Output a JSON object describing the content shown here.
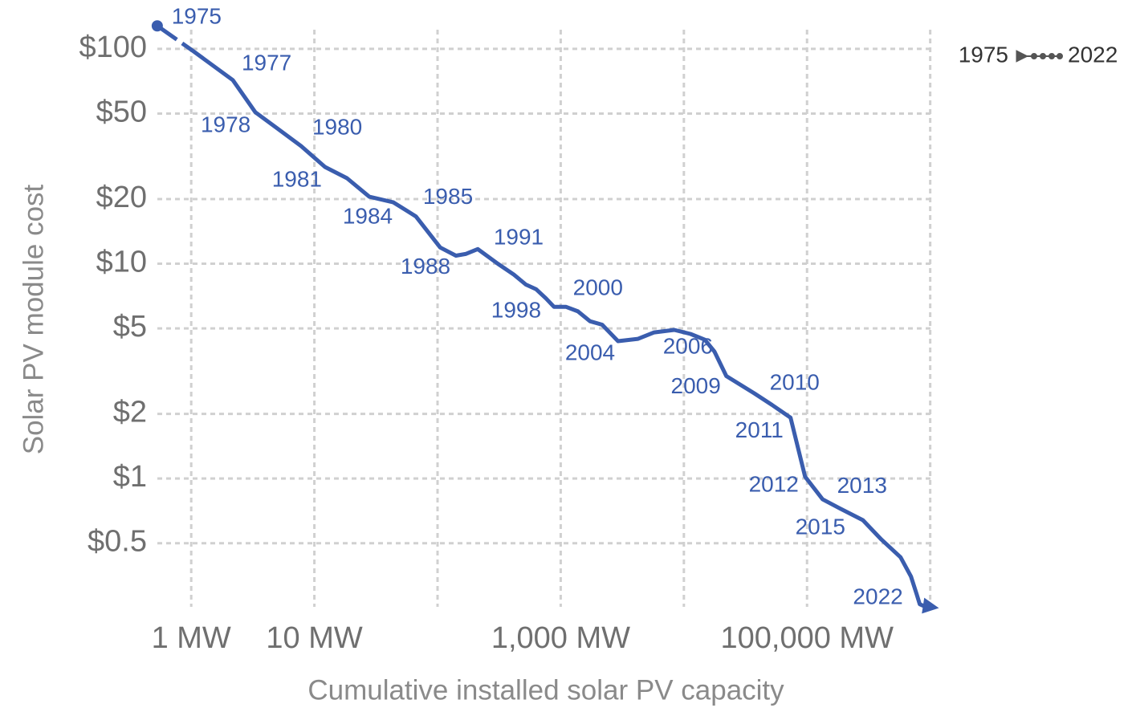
{
  "chart_data": {
    "type": "line",
    "x_label": "Cumulative installed solar PV capacity",
    "y_label": "Solar PV module cost",
    "xlog": true,
    "ylog": true,
    "grid": true,
    "xlim": [
      0.5,
      1100000
    ],
    "ylim": [
      0.24,
      125
    ],
    "xticks": [
      {
        "value": 1,
        "label": "1 MW"
      },
      {
        "value": 10,
        "label": "10 MW"
      },
      {
        "value": 1000,
        "label": "1,000 MW"
      },
      {
        "value": 100000,
        "label": "100,000 MW"
      }
    ],
    "xminor": [
      100,
      10000,
      1000000
    ],
    "yticks": [
      {
        "value": 100,
        "label": "$100"
      },
      {
        "value": 50,
        "label": "$50"
      },
      {
        "value": 20,
        "label": "$20"
      },
      {
        "value": 10,
        "label": "$10"
      },
      {
        "value": 5,
        "label": "$5"
      },
      {
        "value": 2,
        "label": "$2"
      },
      {
        "value": 1,
        "label": "$1"
      },
      {
        "value": 0.5,
        "label": "$0.5"
      }
    ],
    "legend": {
      "start": "1975",
      "end": "2022"
    },
    "series": [
      {
        "color": "#3a5dae",
        "x": [
          0.53,
          1.03,
          2.18,
          3.32,
          4.98,
          7.81,
          12.2,
          18.4,
          27.9,
          43.8,
          66.7,
          105,
          141,
          169,
          212,
          308,
          416,
          521,
          633,
          758,
          881,
          1100,
          1380,
          1730,
          2170,
          2920,
          4250,
          5740,
          8350,
          11300,
          14800,
          17700,
          22100,
          37400,
          52000,
          73500,
          96400,
          134000,
          181000,
          284000,
          401000,
          574000,
          698000,
          775000,
          822000,
          873000,
          942000,
          1045000
        ],
        "values": [
          128,
          98,
          71.5,
          50.7,
          42.7,
          35.3,
          28.2,
          25,
          20.5,
          19.3,
          16.6,
          11.9,
          10.9,
          11.1,
          11.7,
          10.0,
          8.9,
          8.0,
          7.6,
          6.9,
          6.3,
          6.3,
          6.0,
          5.4,
          5.2,
          4.36,
          4.47,
          4.79,
          4.92,
          4.71,
          4.43,
          3.9,
          3.0,
          2.49,
          2.2,
          1.92,
          1.02,
          0.8,
          0.73,
          0.64,
          0.52,
          0.43,
          0.35,
          0.29,
          0.26,
          0.256,
          0.255,
          0.252
        ],
        "point_labels": [
          "1975",
          null,
          "1977",
          "1978",
          null,
          "1980",
          "1981",
          null,
          null,
          "1984",
          "1985",
          null,
          null,
          "1988",
          null,
          null,
          "1991",
          null,
          null,
          null,
          null,
          null,
          null,
          "1998",
          null,
          "2000",
          null,
          null,
          null,
          "2004",
          null,
          "2006",
          null,
          null,
          "2009",
          "2010",
          "2011",
          "2012",
          "2013",
          null,
          "2015",
          null,
          null,
          null,
          null,
          null,
          null,
          "2022"
        ]
      }
    ]
  }
}
